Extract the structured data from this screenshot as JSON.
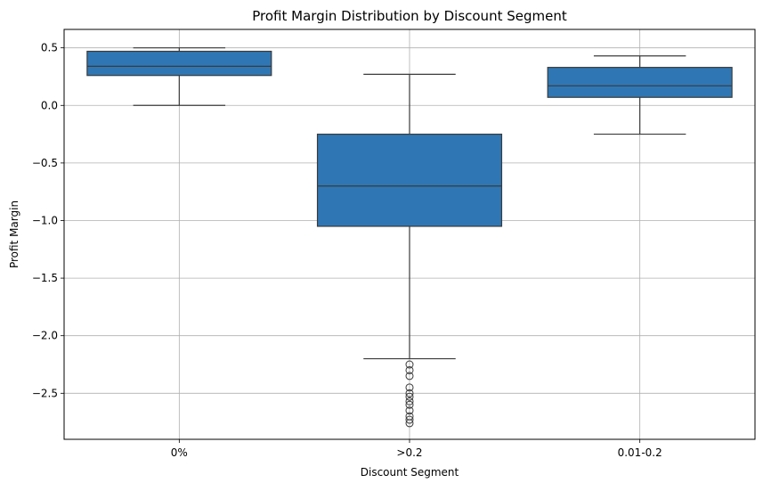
{
  "chart_data": {
    "type": "box",
    "title": "Profit Margin Distribution by Discount Segment",
    "xlabel": "Discount Segment",
    "ylabel": "Profit Margin",
    "ylim": [
      -2.9,
      0.66
    ],
    "yticks": [
      0.5,
      0.0,
      -0.5,
      -1.0,
      -1.5,
      -2.0,
      -2.5
    ],
    "ytick_labels": [
      "0.5",
      "0.0",
      "−0.5",
      "−1.0",
      "−1.5",
      "−2.0",
      "−2.5"
    ],
    "grid": true,
    "box_color": "#2f77b4",
    "edge_color": "#3b3b3b",
    "categories": [
      "0%",
      ">0.2",
      "0.01-0.2"
    ],
    "boxes": [
      {
        "category": "0%",
        "whisker_low": 0.0,
        "q1": 0.26,
        "median": 0.34,
        "q3": 0.47,
        "whisker_high": 0.5,
        "outliers": []
      },
      {
        "category": ">0.2",
        "whisker_low": -2.2,
        "q1": -1.05,
        "median": -0.7,
        "q3": -0.25,
        "whisker_high": 0.27,
        "outliers": [
          -2.25,
          -2.3,
          -2.35,
          -2.45,
          -2.5,
          -2.53,
          -2.57,
          -2.6,
          -2.65,
          -2.7,
          -2.73,
          -2.76
        ]
      },
      {
        "category": "0.01-0.2",
        "whisker_low": -0.25,
        "q1": 0.07,
        "median": 0.17,
        "q3": 0.33,
        "whisker_high": 0.43,
        "outliers": []
      }
    ]
  }
}
